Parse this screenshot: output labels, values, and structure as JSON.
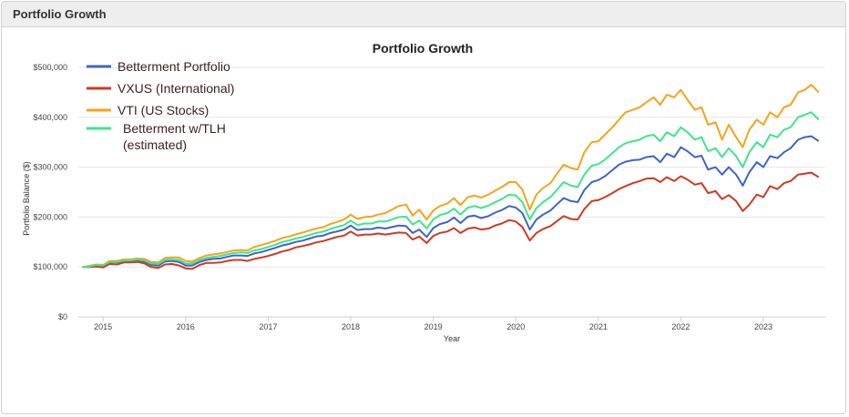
{
  "panel": {
    "title": "Portfolio Growth"
  },
  "chart_data": {
    "type": "line",
    "title": "Portfolio Growth",
    "xlabel": "Year",
    "ylabel": "Portfolio Balance ($)",
    "xlim": [
      2014.7,
      2023.75
    ],
    "ylim": [
      0,
      500000
    ],
    "x_ticks": [
      2015,
      2016,
      2017,
      2018,
      2019,
      2020,
      2021,
      2022,
      2023
    ],
    "x_tick_labels": [
      "2015",
      "2016",
      "2017",
      "2018",
      "2019",
      "2020",
      "2021",
      "2022",
      "2023"
    ],
    "y_ticks": [
      0,
      100000,
      200000,
      300000,
      400000,
      500000
    ],
    "y_tick_labels": [
      "$0",
      "$100,000",
      "$200,000",
      "$300,000",
      "$400,000",
      "$500,000"
    ],
    "grid": "horizontal",
    "legend_position": "top-left",
    "x": [
      2014.75,
      2014.83,
      2014.92,
      2015.0,
      2015.08,
      2015.17,
      2015.25,
      2015.33,
      2015.42,
      2015.5,
      2015.58,
      2015.67,
      2015.75,
      2015.83,
      2015.92,
      2016.0,
      2016.08,
      2016.17,
      2016.25,
      2016.33,
      2016.42,
      2016.5,
      2016.58,
      2016.67,
      2016.75,
      2016.83,
      2016.92,
      2017.0,
      2017.08,
      2017.17,
      2017.25,
      2017.33,
      2017.42,
      2017.5,
      2017.58,
      2017.67,
      2017.75,
      2017.83,
      2017.92,
      2018.0,
      2018.08,
      2018.17,
      2018.25,
      2018.33,
      2018.42,
      2018.5,
      2018.58,
      2018.67,
      2018.75,
      2018.83,
      2018.92,
      2019.0,
      2019.08,
      2019.17,
      2019.25,
      2019.33,
      2019.42,
      2019.5,
      2019.58,
      2019.67,
      2019.75,
      2019.83,
      2019.92,
      2020.0,
      2020.08,
      2020.17,
      2020.25,
      2020.33,
      2020.42,
      2020.5,
      2020.58,
      2020.67,
      2020.75,
      2020.83,
      2020.92,
      2021.0,
      2021.08,
      2021.17,
      2021.25,
      2021.33,
      2021.42,
      2021.5,
      2021.58,
      2021.67,
      2021.75,
      2021.83,
      2021.92,
      2022.0,
      2022.08,
      2022.17,
      2022.25,
      2022.33,
      2022.42,
      2022.5,
      2022.58,
      2022.67,
      2022.75,
      2022.83,
      2022.92,
      2023.0,
      2023.08,
      2023.17,
      2023.25,
      2023.33,
      2023.42,
      2023.5,
      2023.58,
      2023.67
    ],
    "series": [
      {
        "name": "Betterment Portfolio",
        "color": "#3c64c8",
        "values": [
          100000,
          101000,
          103000,
          102000,
          109000,
          109000,
          112000,
          112000,
          113000,
          111000,
          104000,
          103000,
          111000,
          112000,
          110000,
          103000,
          103000,
          110000,
          114000,
          116000,
          117000,
          120000,
          123000,
          123000,
          122000,
          127000,
          130000,
          134000,
          138000,
          143000,
          146000,
          150000,
          153000,
          157000,
          161000,
          163000,
          168000,
          171000,
          175000,
          183000,
          174000,
          176000,
          176000,
          179000,
          177000,
          180000,
          183000,
          182000,
          168000,
          175000,
          160000,
          178000,
          186000,
          190000,
          199000,
          188000,
          201000,
          203000,
          198000,
          202000,
          209000,
          214000,
          222000,
          219000,
          208000,
          175000,
          195000,
          205000,
          213000,
          226000,
          238000,
          232000,
          230000,
          254000,
          270000,
          274000,
          282000,
          294000,
          305000,
          311000,
          314000,
          315000,
          320000,
          322000,
          310000,
          327000,
          320000,
          340000,
          332000,
          320000,
          323000,
          295000,
          300000,
          285000,
          300000,
          285000,
          263000,
          290000,
          310000,
          300000,
          322000,
          318000,
          330000,
          338000,
          355000,
          360000,
          362000,
          352000
        ]
      },
      {
        "name": "VXUS (International)",
        "color": "#d0391f",
        "values": [
          100000,
          100000,
          101000,
          99000,
          106000,
          105000,
          109000,
          109000,
          110000,
          107000,
          100000,
          98000,
          105000,
          106000,
          103000,
          97000,
          96000,
          104000,
          108000,
          108000,
          109000,
          112000,
          114000,
          114000,
          112000,
          116000,
          119000,
          122000,
          126000,
          131000,
          134000,
          139000,
          142000,
          145000,
          149000,
          152000,
          156000,
          160000,
          163000,
          171000,
          163000,
          165000,
          165000,
          167000,
          165000,
          167000,
          169000,
          168000,
          155000,
          161000,
          148000,
          162000,
          168000,
          171000,
          178000,
          168000,
          177000,
          179000,
          175000,
          177000,
          183000,
          187000,
          194000,
          191000,
          180000,
          153000,
          168000,
          176000,
          182000,
          192000,
          202000,
          196000,
          195000,
          216000,
          232000,
          234000,
          240000,
          248000,
          256000,
          262000,
          268000,
          272000,
          277000,
          278000,
          270000,
          280000,
          272000,
          282000,
          275000,
          265000,
          268000,
          248000,
          252000,
          236000,
          244000,
          232000,
          212000,
          225000,
          245000,
          240000,
          262000,
          256000,
          268000,
          272000,
          285000,
          287000,
          289000,
          280000
        ]
      },
      {
        "name": "VTI (US Stocks)",
        "color": "#f5a31a",
        "values": [
          100000,
          102000,
          105000,
          104000,
          112000,
          112000,
          115000,
          115000,
          117000,
          116000,
          110000,
          109000,
          118000,
          119000,
          119000,
          112000,
          111000,
          118000,
          123000,
          125000,
          127000,
          130000,
          133000,
          134000,
          133000,
          140000,
          144000,
          148000,
          152000,
          158000,
          161000,
          165000,
          169000,
          173000,
          177000,
          180000,
          186000,
          190000,
          195000,
          205000,
          196000,
          200000,
          201000,
          205000,
          208000,
          215000,
          222000,
          225000,
          203000,
          215000,
          195000,
          213000,
          222000,
          227000,
          238000,
          224000,
          240000,
          243000,
          239000,
          245000,
          253000,
          260000,
          270000,
          270000,
          255000,
          215000,
          245000,
          258000,
          268000,
          287000,
          305000,
          298000,
          295000,
          330000,
          350000,
          352000,
          365000,
          380000,
          395000,
          410000,
          415000,
          420000,
          430000,
          440000,
          425000,
          445000,
          440000,
          455000,
          435000,
          415000,
          420000,
          385000,
          390000,
          355000,
          385000,
          360000,
          340000,
          375000,
          395000,
          385000,
          410000,
          400000,
          420000,
          425000,
          450000,
          455000,
          465000,
          450000
        ]
      },
      {
        "name": "Betterment w/TLH (estimated)",
        "color": "#3de68c",
        "values": [
          100000,
          101000,
          104000,
          103000,
          110000,
          110000,
          113000,
          113000,
          115000,
          113000,
          107000,
          106000,
          114000,
          115000,
          114000,
          107000,
          107000,
          114000,
          118000,
          120000,
          122000,
          125000,
          128000,
          129000,
          128000,
          133000,
          136000,
          140000,
          144000,
          150000,
          153000,
          157000,
          160000,
          164000,
          168000,
          171000,
          176000,
          180000,
          184000,
          193000,
          184000,
          187000,
          187000,
          191000,
          191000,
          195000,
          200000,
          201000,
          185000,
          193000,
          177000,
          195000,
          204000,
          208000,
          217000,
          205000,
          219000,
          222000,
          218000,
          223000,
          230000,
          236000,
          245000,
          243000,
          230000,
          195000,
          218000,
          230000,
          240000,
          255000,
          270000,
          263000,
          260000,
          285000,
          303000,
          306000,
          315000,
          328000,
          340000,
          348000,
          352000,
          355000,
          362000,
          365000,
          352000,
          370000,
          362000,
          380000,
          370000,
          355000,
          360000,
          332000,
          338000,
          320000,
          338000,
          322000,
          300000,
          330000,
          350000,
          340000,
          365000,
          360000,
          375000,
          380000,
          400000,
          405000,
          410000,
          395000
        ]
      }
    ]
  }
}
